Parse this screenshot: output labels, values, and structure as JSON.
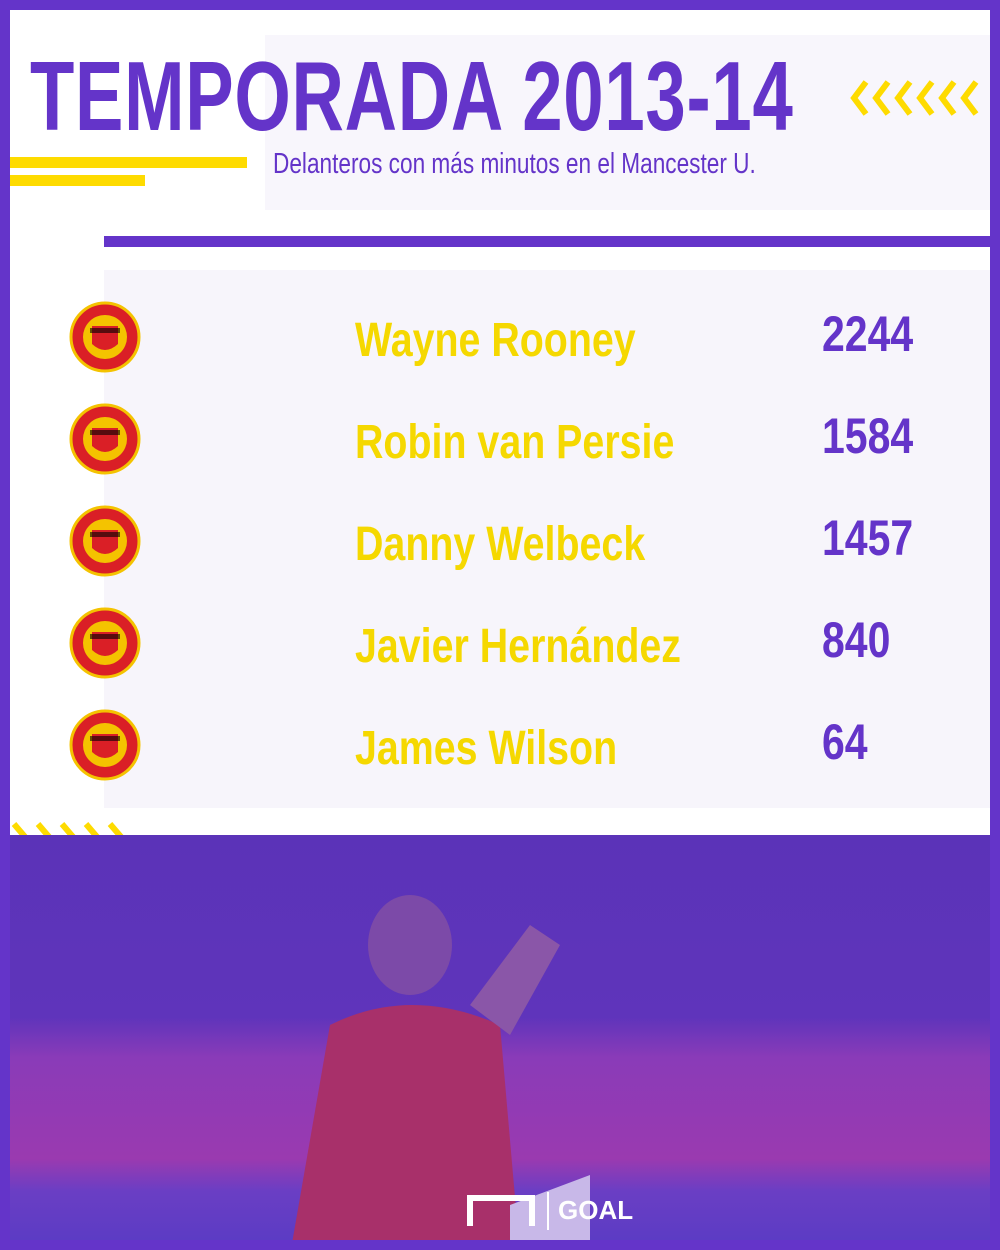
{
  "header": {
    "title": "TEMPORADA 2013-14",
    "subtitle": "Delanteros con más minutos en el Mancester U."
  },
  "rows": [
    {
      "name": "Wayne Rooney",
      "minutes": "2244"
    },
    {
      "name": "Robin van Persie",
      "minutes": "1584"
    },
    {
      "name": "Danny Welbeck",
      "minutes": "1457"
    },
    {
      "name": "Javier Hernández",
      "minutes": "840"
    },
    {
      "name": "James Wilson",
      "minutes": "64"
    }
  ],
  "footer": {
    "brand": "GOAL"
  },
  "colors": {
    "purple": "#6434c9",
    "yellow": "#f5d800",
    "panel": "#f7f5fb"
  }
}
